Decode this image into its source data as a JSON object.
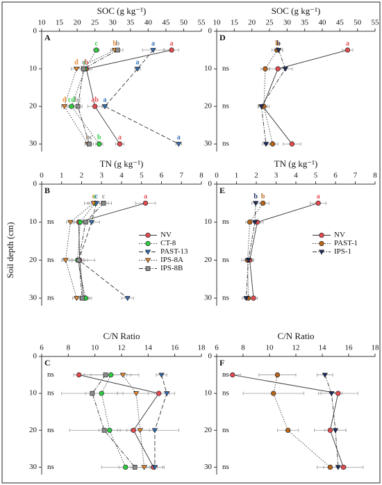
{
  "ylabel": "Soil depth (cm)",
  "chart_data": [
    {
      "type": "line",
      "panel": "A",
      "title": "SOC (g kg⁻¹)",
      "depths": [
        5,
        10,
        20,
        30
      ],
      "xlim": [
        10,
        55
      ],
      "xticks": [
        10,
        15,
        20,
        25,
        30,
        35,
        40,
        45,
        50,
        55
      ],
      "ylim": [
        0,
        32
      ],
      "yticks": [
        0,
        10,
        20,
        30
      ],
      "series": [
        {
          "name": "NV",
          "color": "#e34a4f",
          "marker": "circle",
          "dash": "solid",
          "values": [
            46.6,
            22.6,
            25,
            32
          ],
          "errors": [
            2,
            1.5,
            2,
            1.2
          ]
        },
        {
          "name": "CT-8",
          "color": "#2ecc40",
          "marker": "circle",
          "dash": "dotted",
          "values": [
            25.4,
            22.2,
            18.4,
            26.2
          ],
          "errors": [
            0.8,
            1,
            0.8,
            1
          ]
        },
        {
          "name": "PAST-13",
          "color": "#2f6db5",
          "marker": "triangle",
          "dash": "dashed",
          "values": [
            41.4,
            37,
            27.8,
            48.6
          ],
          "errors": [
            3,
            0.8,
            0.6,
            0.8
          ]
        },
        {
          "name": "IPS-8A",
          "color": "#e8862a",
          "marker": "triangle",
          "dash": "dotted",
          "values": [
            30.6,
            19.8,
            16.4,
            23
          ],
          "errors": [
            1.2,
            1.5,
            0.8,
            0.8
          ]
        },
        {
          "name": "IPS-8B",
          "color": "#8c8c8c",
          "marker": "square",
          "dash": "dashdot",
          "values": [
            31.4,
            21.8,
            20.2,
            23.4
          ],
          "errors": [
            1.5,
            1.8,
            1.2,
            1.2
          ]
        }
      ],
      "letters": [
        {
          "text": "a",
          "series": 0,
          "point": 0
        },
        {
          "text": "c",
          "series": 1,
          "point": 0
        },
        {
          "text": "b",
          "series": 3,
          "point": 0
        },
        {
          "text": "b",
          "series": 4,
          "point": 0
        },
        {
          "text": "a",
          "series": 2,
          "point": 0
        },
        {
          "text": "d",
          "series": 3,
          "point": 1
        },
        {
          "text": "b",
          "series": 0,
          "point": 1
        },
        {
          "text": "a",
          "series": 2,
          "point": 1
        },
        {
          "text": "c",
          "series": 1,
          "point": 1
        },
        {
          "text": "c",
          "series": 4,
          "point": 1
        },
        {
          "text": "d",
          "series": 3,
          "point": 2
        },
        {
          "text": "cd",
          "series": 1,
          "point": 2
        },
        {
          "text": "ab",
          "series": 0,
          "point": 2
        },
        {
          "text": "a",
          "series": 2,
          "point": 2
        },
        {
          "text": "bc",
          "series": 4,
          "point": 2
        },
        {
          "text": "c",
          "series": 3,
          "point": 3
        },
        {
          "text": "b",
          "series": 1,
          "point": 3
        },
        {
          "text": "a",
          "series": 0,
          "point": 3
        },
        {
          "text": "a",
          "series": 2,
          "point": 3
        },
        {
          "text": "bc",
          "series": 4,
          "point": 3
        }
      ]
    },
    {
      "type": "line",
      "panel": "B",
      "title": "TN (g kg⁻¹)",
      "depths": [
        5,
        10,
        20,
        30
      ],
      "xlim": [
        0,
        8
      ],
      "xticks": [
        0,
        1,
        2,
        3,
        4,
        5,
        6,
        7,
        8
      ],
      "ylim": [
        0,
        32
      ],
      "yticks": [
        0,
        10,
        20,
        30
      ],
      "legend": "right",
      "series": [
        {
          "name": "NV",
          "color": "#e34a4f",
          "marker": "circle",
          "dash": "solid",
          "values": [
            5.2,
            1.86,
            1.9,
            2.1
          ],
          "errors": [
            0.5,
            0.3,
            0.4,
            0.3
          ]
        },
        {
          "name": "CT-8",
          "color": "#2ecc40",
          "marker": "circle",
          "dash": "dotted",
          "values": [
            2.67,
            1.93,
            1.8,
            2.2
          ],
          "errors": [
            0.3,
            0.3,
            0.3,
            0.3
          ]
        },
        {
          "name": "PAST-13",
          "color": "#2f6db5",
          "marker": "triangle",
          "dash": "dashed",
          "values": [
            2.74,
            2.5,
            1.86,
            4.3
          ],
          "errors": [
            0.6,
            0.4,
            0.3,
            0.3
          ]
        },
        {
          "name": "IPS-8A",
          "color": "#e8862a",
          "marker": "triangle",
          "dash": "dotted",
          "values": [
            2.6,
            1.44,
            1.2,
            1.75
          ],
          "errors": [
            0.3,
            0.2,
            0.2,
            0.2
          ]
        },
        {
          "name": "IPS-8B",
          "color": "#8c8c8c",
          "marker": "square",
          "dash": "dashdot",
          "values": [
            3.1,
            2.2,
            1.86,
            2.03
          ],
          "errors": [
            0.4,
            0.4,
            0.8,
            0.3
          ]
        }
      ],
      "letters": [
        {
          "text": "c",
          "series": 1,
          "point": 0
        },
        {
          "text": "c",
          "series": 3,
          "point": 0
        },
        {
          "text": "c",
          "series": 2,
          "point": 0
        },
        {
          "text": "c",
          "series": 4,
          "point": 0
        },
        {
          "text": "a",
          "series": 0,
          "point": 0
        }
      ],
      "row_labels": [
        null,
        "ns",
        "ns",
        "ns"
      ]
    },
    {
      "type": "line",
      "panel": "C",
      "title": "C/N Ratio",
      "depths": [
        5,
        10,
        20,
        30
      ],
      "xlim": [
        6,
        18
      ],
      "xticks": [
        6,
        8,
        10,
        12,
        14,
        16,
        18
      ],
      "ylim": [
        0,
        32
      ],
      "yticks": [
        0,
        10,
        20,
        30
      ],
      "series": [
        {
          "name": "NV",
          "color": "#e34a4f",
          "marker": "circle",
          "dash": "solid",
          "values": [
            8.8,
            14.8,
            12.9,
            14.4
          ],
          "errors": [
            0.4,
            0.8,
            1.2,
            0.8
          ]
        },
        {
          "name": "CT-8",
          "color": "#2ecc40",
          "marker": "circle",
          "dash": "dotted",
          "values": [
            11.2,
            10.5,
            11.1,
            12.3
          ],
          "errors": [
            1.5,
            1.2,
            0.8,
            1.8
          ]
        },
        {
          "name": "PAST-13",
          "color": "#2f6db5",
          "marker": "triangle",
          "dash": "dashed",
          "values": [
            15,
            15.4,
            14.5,
            14.5
          ],
          "errors": [
            0.4,
            0.6,
            1.8,
            0.6
          ]
        },
        {
          "name": "IPS-8A",
          "color": "#e8862a",
          "marker": "triangle",
          "dash": "dotted",
          "values": [
            12.1,
            13.1,
            13.4,
            13.7
          ],
          "errors": [
            1.2,
            1.4,
            1,
            1
          ]
        },
        {
          "name": "IPS-8B",
          "color": "#8c8c8c",
          "marker": "square",
          "dash": "dashdot",
          "values": [
            10.8,
            9.8,
            10.7,
            13
          ],
          "errors": [
            1.6,
            2.3,
            2.6,
            1.2
          ]
        }
      ],
      "row_labels": [
        "ns",
        "ns",
        "ns",
        "ns"
      ]
    },
    {
      "type": "line",
      "panel": "D",
      "title": "SOC (g kg⁻¹)",
      "depths": [
        5,
        10,
        20,
        30
      ],
      "xlim": [
        10,
        55
      ],
      "xticks": [
        10,
        15,
        20,
        25,
        30,
        35,
        40,
        45,
        50,
        55
      ],
      "ylim": [
        0,
        32
      ],
      "yticks": [
        0,
        10,
        20,
        30
      ],
      "series": [
        {
          "name": "NV",
          "color": "#e34a4f",
          "marker": "circle",
          "dash": "solid",
          "values": [
            47.2,
            27.4,
            23.1,
            31.4
          ],
          "errors": [
            1.5,
            2.5,
            1.2,
            2.5
          ]
        },
        {
          "name": "PAST-1",
          "color": "#b8651b",
          "marker": "circle",
          "dash": "dotted",
          "values": [
            27.2,
            23.8,
            23.4,
            25.9
          ],
          "errors": [
            1.5,
            1.2,
            1.5,
            1.5
          ]
        },
        {
          "name": "IPS-1",
          "color": "#1a2a5e",
          "marker": "triangle",
          "dash": "dashdot",
          "values": [
            27.6,
            29.5,
            22.7,
            24
          ],
          "errors": [
            1.2,
            2,
            1,
            1
          ]
        }
      ],
      "letters": [
        {
          "text": "b",
          "series": 2,
          "point": 0
        },
        {
          "text": "b",
          "series": 1,
          "point": 0
        },
        {
          "text": "a",
          "series": 0,
          "point": 0
        }
      ],
      "row_labels": [
        null,
        "ns",
        "ns",
        "ns"
      ]
    },
    {
      "type": "line",
      "panel": "E",
      "title": "TN (g kg⁻¹)",
      "depths": [
        5,
        10,
        20,
        30
      ],
      "xlim": [
        0,
        8
      ],
      "xticks": [
        0,
        1,
        2,
        3,
        4,
        5,
        6,
        7,
        8
      ],
      "ylim": [
        0,
        32
      ],
      "yticks": [
        0,
        10,
        20,
        30
      ],
      "legend": "right",
      "series": [
        {
          "name": "NV",
          "color": "#e34a4f",
          "marker": "circle",
          "dash": "solid",
          "values": [
            5.13,
            2.05,
            1.67,
            1.86
          ],
          "errors": [
            0.4,
            0.3,
            0.2,
            0.2
          ]
        },
        {
          "name": "PAST-1",
          "color": "#b8651b",
          "marker": "circle",
          "dash": "dotted",
          "values": [
            2.34,
            1.67,
            1.56,
            1.6
          ],
          "errors": [
            0.3,
            0.2,
            0.3,
            0.2
          ]
        },
        {
          "name": "IPS-1",
          "color": "#1a2a5e",
          "marker": "triangle",
          "dash": "dashdot",
          "values": [
            1.97,
            1.93,
            1.6,
            1.49
          ],
          "errors": [
            0.2,
            0.3,
            0.2,
            0.2
          ]
        }
      ],
      "letters": [
        {
          "text": "b",
          "series": 2,
          "point": 0
        },
        {
          "text": "b",
          "series": 1,
          "point": 0
        },
        {
          "text": "a",
          "series": 0,
          "point": 0
        }
      ],
      "row_labels": [
        null,
        "ns",
        "ns",
        "ns"
      ]
    },
    {
      "type": "line",
      "panel": "F",
      "title": "C/N Ratio",
      "depths": [
        5,
        10,
        20,
        30
      ],
      "xlim": [
        6,
        18
      ],
      "xticks": [
        6,
        8,
        10,
        12,
        14,
        16,
        18
      ],
      "ylim": [
        0,
        32
      ],
      "yticks": [
        0,
        10,
        20,
        30
      ],
      "series": [
        {
          "name": "NV",
          "color": "#e34a4f",
          "marker": "circle",
          "dash": "solid",
          "values": [
            7.2,
            15.2,
            14.6,
            15.6
          ],
          "errors": [
            0.6,
            1.5,
            1.2,
            1.5
          ]
        },
        {
          "name": "PAST-1",
          "color": "#b8651b",
          "marker": "circle",
          "dash": "dotted",
          "values": [
            10.6,
            10.3,
            11.4,
            14.6
          ],
          "errors": [
            1.4,
            2.3,
            0.8,
            1
          ]
        },
        {
          "name": "IPS-1",
          "color": "#1a2a5e",
          "marker": "triangle",
          "dash": "dashdot",
          "values": [
            14.2,
            14.7,
            15,
            15.2
          ],
          "errors": [
            0.6,
            0.8,
            0.8,
            0.6
          ]
        }
      ],
      "row_labels": [
        "ns",
        "ns",
        "ns",
        "ns"
      ]
    }
  ]
}
